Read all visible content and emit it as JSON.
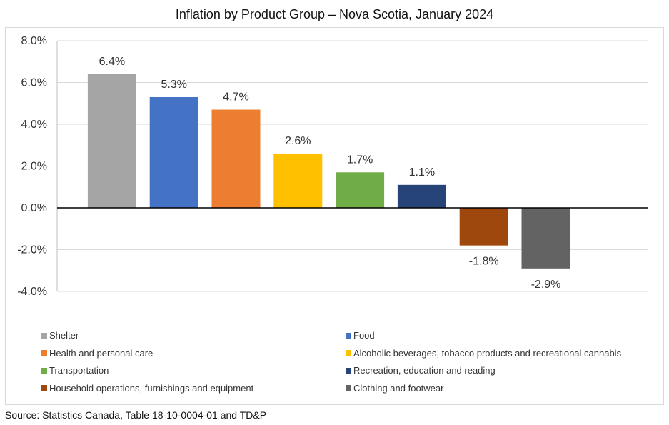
{
  "chart_data": {
    "type": "bar",
    "title": "Inflation by Product Group – Nova Scotia, January 2024",
    "xlabel": "",
    "ylabel": "",
    "ylim": [
      -4,
      8
    ],
    "yticks": [
      "8.0%",
      "6.0%",
      "4.0%",
      "2.0%",
      "0.0%",
      "-2.0%",
      "-4.0%"
    ],
    "grid": true,
    "legend_position": "bottom",
    "categories": [
      "Shelter",
      "Food",
      "Health and personal care",
      "Alcoholic beverages, tobacco products and recreational cannabis",
      "Transportation",
      "Recreation, education and reading",
      "Household operations, furnishings and equipment",
      "Clothing and footwear"
    ],
    "values": [
      6.4,
      5.3,
      4.7,
      2.6,
      1.7,
      1.1,
      -1.8,
      -2.9
    ],
    "data_labels": [
      "6.4%",
      "5.3%",
      "4.7%",
      "2.6%",
      "1.7%",
      "1.1%",
      "-1.8%",
      "-2.9%"
    ],
    "colors": [
      "#a5a5a5",
      "#4472c4",
      "#ed7d31",
      "#ffc000",
      "#70ad47",
      "#264478",
      "#9e480e",
      "#636363"
    ]
  },
  "source": "Source: Statistics Canada, Table 18-10-0004-01 and TD&P"
}
